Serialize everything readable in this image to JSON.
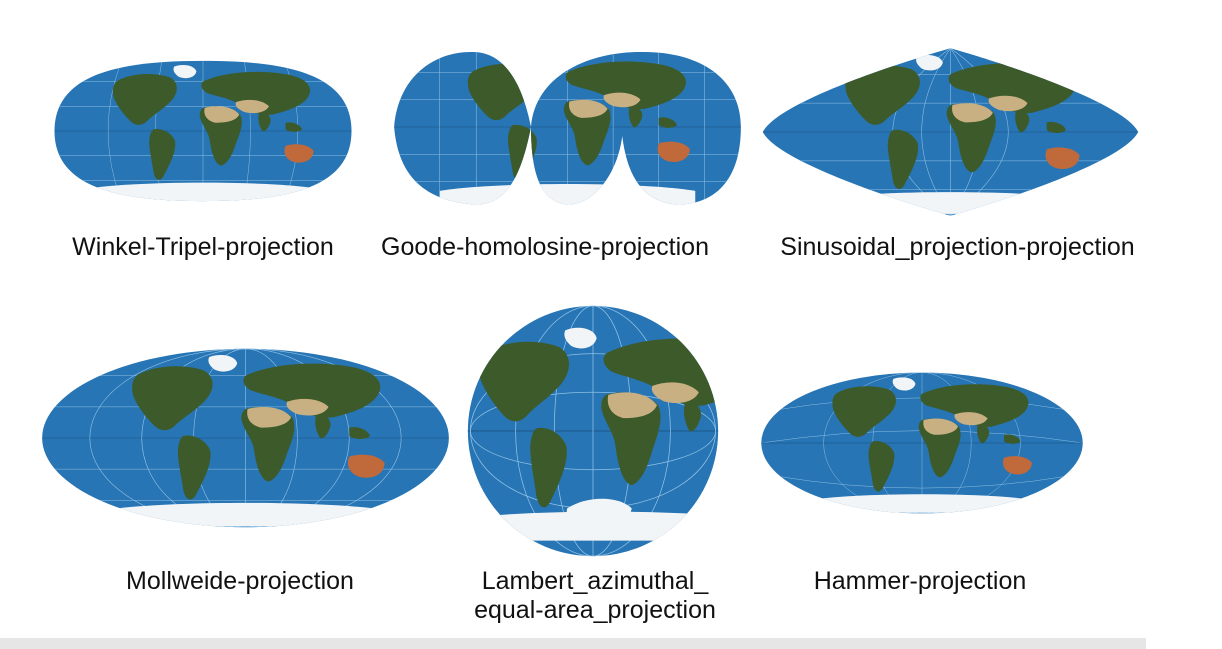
{
  "colors": {
    "ocean": "#2775b4",
    "graticule": "#8fc0e6",
    "land_green": "#3d5a2a",
    "land_desert": "#c9b083",
    "ice": "#f2f5f7",
    "australia": "#c0693a"
  },
  "projections": [
    {
      "id": "winkel",
      "caption": "Winkel-Tripel-projection"
    },
    {
      "id": "goode",
      "caption": "Goode-homolosine-projection"
    },
    {
      "id": "sinusoidal",
      "caption": "Sinusoidal_projection-projection"
    },
    {
      "id": "mollweide",
      "caption": "Mollweide-projection"
    },
    {
      "id": "lambert",
      "caption_line1": "Lambert_azimuthal_",
      "caption_line2": "equal-area_projection"
    },
    {
      "id": "hammer",
      "caption": "Hammer-projection"
    }
  ]
}
